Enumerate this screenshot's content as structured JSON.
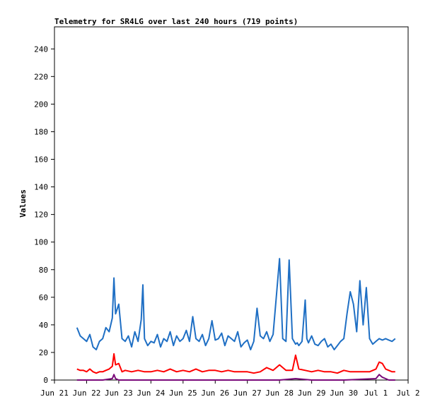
{
  "chart_data": {
    "type": "line",
    "title": "Telemetry for SR4LG over last 240 hours (719 points)",
    "ylabel": "Values",
    "xlabel": "",
    "ylim": [
      0,
      256
    ],
    "xlim": [
      0,
      11
    ],
    "y_ticks": [
      0,
      20,
      40,
      60,
      80,
      100,
      120,
      140,
      160,
      180,
      200,
      220,
      240
    ],
    "x_ticks": [
      {
        "x": 0,
        "label": "Jun 21"
      },
      {
        "x": 1,
        "label": "Jun 22"
      },
      {
        "x": 2,
        "label": "Jun 23"
      },
      {
        "x": 3,
        "label": "Jun 24"
      },
      {
        "x": 4,
        "label": "Jun 25"
      },
      {
        "x": 5,
        "label": "Jun 26"
      },
      {
        "x": 6,
        "label": "Jun 27"
      },
      {
        "x": 7,
        "label": "Jun 28"
      },
      {
        "x": 8,
        "label": "Jun 29"
      },
      {
        "x": 9,
        "label": "Jun 30"
      },
      {
        "x": 10,
        "label": "Jul 1"
      },
      {
        "x": 11,
        "label": "Jul 2"
      }
    ],
    "grid": false,
    "series": [
      {
        "color": "#1f6fc4",
        "x": [
          0.7,
          0.8,
          0.9,
          1.0,
          1.1,
          1.2,
          1.3,
          1.4,
          1.5,
          1.6,
          1.7,
          1.8,
          1.85,
          1.9,
          2.0,
          2.1,
          2.2,
          2.3,
          2.4,
          2.5,
          2.6,
          2.7,
          2.75,
          2.8,
          2.9,
          3.0,
          3.1,
          3.2,
          3.3,
          3.4,
          3.5,
          3.6,
          3.7,
          3.8,
          3.9,
          4.0,
          4.1,
          4.2,
          4.3,
          4.4,
          4.5,
          4.6,
          4.7,
          4.8,
          4.9,
          5.0,
          5.1,
          5.2,
          5.3,
          5.4,
          5.5,
          5.6,
          5.7,
          5.8,
          5.9,
          6.0,
          6.1,
          6.2,
          6.3,
          6.4,
          6.5,
          6.6,
          6.7,
          6.8,
          6.9,
          7.0,
          7.1,
          7.2,
          7.3,
          7.4,
          7.5,
          7.55,
          7.6,
          7.7,
          7.8,
          7.85,
          7.9,
          8.0,
          8.1,
          8.2,
          8.3,
          8.4,
          8.5,
          8.6,
          8.7,
          8.8,
          8.9,
          9.0,
          9.1,
          9.2,
          9.3,
          9.4,
          9.5,
          9.6,
          9.7,
          9.8,
          9.9,
          10.0,
          10.1,
          10.2,
          10.3,
          10.4,
          10.5,
          10.6
        ],
        "values": [
          38,
          32,
          30,
          28,
          33,
          24,
          22,
          28,
          30,
          38,
          35,
          45,
          74,
          48,
          55,
          30,
          28,
          32,
          24,
          35,
          28,
          44,
          69,
          30,
          25,
          28,
          27,
          33,
          24,
          30,
          28,
          35,
          25,
          32,
          28,
          30,
          36,
          28,
          46,
          30,
          28,
          33,
          25,
          30,
          43,
          29,
          30,
          34,
          25,
          32,
          30,
          28,
          35,
          24,
          27,
          29,
          22,
          28,
          52,
          32,
          30,
          35,
          28,
          33,
          60,
          88,
          30,
          28,
          87,
          30,
          26,
          27,
          25,
          28,
          58,
          30,
          27,
          32,
          26,
          25,
          28,
          30,
          24,
          26,
          22,
          25,
          28,
          30,
          48,
          64,
          55,
          35,
          72,
          40,
          67,
          30,
          26,
          28,
          30,
          29,
          30,
          29,
          28,
          30
        ]
      },
      {
        "color": "#ff0000",
        "x": [
          0.7,
          0.8,
          0.9,
          1.0,
          1.1,
          1.2,
          1.3,
          1.4,
          1.5,
          1.6,
          1.7,
          1.8,
          1.85,
          1.9,
          2.0,
          2.1,
          2.2,
          2.4,
          2.6,
          2.8,
          3.0,
          3.2,
          3.4,
          3.6,
          3.8,
          4.0,
          4.2,
          4.4,
          4.6,
          4.8,
          5.0,
          5.2,
          5.4,
          5.6,
          5.8,
          6.0,
          6.2,
          6.4,
          6.6,
          6.8,
          7.0,
          7.2,
          7.4,
          7.5,
          7.6,
          7.8,
          8.0,
          8.2,
          8.4,
          8.6,
          8.8,
          9.0,
          9.2,
          9.4,
          9.6,
          9.8,
          10.0,
          10.1,
          10.2,
          10.3,
          10.4,
          10.5,
          10.6
        ],
        "values": [
          8,
          7,
          7,
          6,
          8,
          6,
          5,
          6,
          6,
          7,
          8,
          10,
          19,
          11,
          12,
          6,
          7,
          6,
          7,
          6,
          6,
          7,
          6,
          8,
          6,
          7,
          6,
          8,
          6,
          7,
          7,
          6,
          7,
          6,
          6,
          6,
          5,
          6,
          9,
          7,
          11,
          7,
          7,
          18,
          8,
          7,
          6,
          7,
          6,
          6,
          5,
          7,
          6,
          6,
          6,
          6,
          8,
          13,
          12,
          8,
          7,
          6,
          6
        ]
      },
      {
        "color": "#7a0a7a",
        "x": [
          0.7,
          1.0,
          1.5,
          1.8,
          1.85,
          1.9,
          2.0,
          3.0,
          4.0,
          5.0,
          6.0,
          7.0,
          7.5,
          8.0,
          9.0,
          10.0,
          10.1,
          10.2,
          10.3,
          10.4,
          10.6
        ],
        "values": [
          0,
          0,
          0,
          1,
          4,
          1,
          0,
          0,
          0,
          0,
          0,
          0,
          1,
          0,
          0,
          1,
          4,
          2,
          1,
          0,
          0
        ]
      }
    ]
  }
}
